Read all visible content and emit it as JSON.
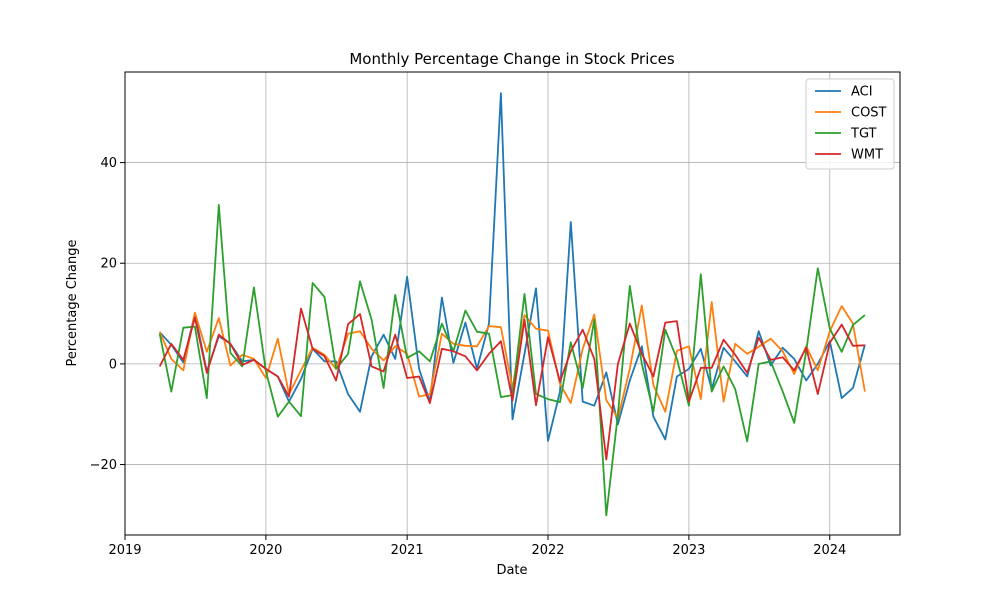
{
  "chart_data": {
    "type": "line",
    "title": "Monthly Percentage Change in Stock Prices",
    "xlabel": "Date",
    "ylabel": "Percentage Change",
    "xlim": [
      "2019-01-01",
      "2024-07-01"
    ],
    "ylim": [
      -34,
      58
    ],
    "xticks": [
      "2019",
      "2020",
      "2021",
      "2022",
      "2023",
      "2024"
    ],
    "yticks": [
      -20,
      0,
      20,
      40
    ],
    "ytick_labels": [
      "−20",
      "0",
      "20",
      "40"
    ],
    "grid": true,
    "legend_position": "top-right",
    "x": [
      "2019-04",
      "2019-05",
      "2019-06",
      "2019-07",
      "2019-08",
      "2019-09",
      "2019-10",
      "2019-11",
      "2019-12",
      "2020-01",
      "2020-02",
      "2020-03",
      "2020-04",
      "2020-05",
      "2020-06",
      "2020-07",
      "2020-08",
      "2020-09",
      "2020-10",
      "2020-11",
      "2020-12",
      "2021-01",
      "2021-02",
      "2021-03",
      "2021-04",
      "2021-05",
      "2021-06",
      "2021-07",
      "2021-08",
      "2021-09",
      "2021-10",
      "2021-11",
      "2021-12",
      "2022-01",
      "2022-02",
      "2022-03",
      "2022-04",
      "2022-05",
      "2022-06",
      "2022-07",
      "2022-08",
      "2022-09",
      "2022-10",
      "2022-11",
      "2022-12",
      "2023-01",
      "2023-02",
      "2023-03",
      "2023-04",
      "2023-05",
      "2023-06",
      "2023-07",
      "2023-08",
      "2023-09",
      "2023-10",
      "2023-11",
      "2023-12",
      "2024-01",
      "2024-02",
      "2024-03",
      "2024-04"
    ],
    "series": [
      {
        "name": "ACI",
        "color": "#1f77b4",
        "values": [
          6.3,
          3.8,
          0.3,
          10.0,
          -1.5,
          5.5,
          4.0,
          0.5,
          0.8,
          -1.0,
          -2.5,
          -7.5,
          -3.0,
          3.0,
          0.5,
          0.5,
          -6.0,
          -9.5,
          1.5,
          5.8,
          1.0,
          17.3,
          -1.0,
          -7.5,
          13.2,
          0.2,
          8.2,
          -1.0,
          8.0,
          53.8,
          -11.0,
          2.0,
          15.0,
          -15.3,
          -5.5,
          28.2,
          -7.5,
          -8.3,
          -1.7,
          -12.0,
          -3.3,
          3.5,
          -10.5,
          -15.0,
          -2.5,
          -1.0,
          3.0,
          -5.0,
          3.2,
          0.5,
          -2.5,
          6.5,
          -0.3,
          3.2,
          1.0,
          -3.3,
          0.0,
          4.5,
          -6.8,
          -4.8,
          3.8
        ]
      },
      {
        "name": "COST",
        "color": "#ff7f0e",
        "values": [
          6.4,
          1.0,
          -1.3,
          10.2,
          2.4,
          9.1,
          -0.3,
          1.8,
          1.0,
          -2.8,
          5.0,
          -6.0,
          -1.3,
          3.2,
          1.8,
          -1.0,
          6.0,
          6.5,
          3.0,
          0.7,
          3.5,
          2.0,
          -6.5,
          -6.0,
          6.0,
          4.0,
          3.6,
          3.5,
          7.5,
          7.3,
          -4.8,
          9.7,
          7.0,
          6.6,
          -4.0,
          -7.8,
          3.0,
          9.8,
          -7.2,
          -10.8,
          -1.0,
          11.6,
          -4.2,
          -9.5,
          2.6,
          3.5,
          -7.0,
          12.3,
          -7.5,
          4.0,
          2.0,
          3.4,
          5.0,
          2.5,
          -2.0,
          3.5,
          -1.3,
          6.5,
          11.5,
          8.0,
          -5.5
        ]
      },
      {
        "name": "TGT",
        "color": "#2ca02c",
        "values": [
          6.0,
          -5.5,
          7.2,
          7.4,
          -6.8,
          31.6,
          2.2,
          -0.5,
          15.2,
          -1.5,
          -10.5,
          -7.5,
          -10.4,
          16.1,
          13.3,
          -1.0,
          2.0,
          16.4,
          8.8,
          -4.8,
          13.7,
          1.2,
          2.5,
          0.5,
          8.0,
          2.5,
          10.6,
          6.4,
          6.0,
          -6.6,
          -6.2,
          13.9,
          -6.0,
          -7.0,
          -7.6,
          4.3,
          -4.8,
          8.8,
          -30.1,
          -10.0,
          15.5,
          0.0,
          -9.5,
          6.8,
          1.0,
          -8.3,
          17.8,
          -5.5,
          -0.5,
          -5.0,
          -15.4,
          0.0,
          0.5,
          -5.5,
          -11.7,
          2.5,
          19.0,
          7.0,
          2.4,
          7.7,
          9.7
        ]
      },
      {
        "name": "WMT",
        "color": "#d62728",
        "values": [
          -0.5,
          4.0,
          0.8,
          9.2,
          -1.8,
          5.8,
          4.0,
          -0.2,
          0.8,
          -1.0,
          -2.5,
          -6.5,
          11.0,
          3.0,
          1.5,
          -3.3,
          7.9,
          9.9,
          -0.5,
          -1.5,
          5.8,
          -2.8,
          -2.5,
          -7.8,
          3.0,
          2.5,
          1.5,
          -1.3,
          2.0,
          4.5,
          -7.3,
          8.8,
          -8.2,
          5.3,
          -3.5,
          2.5,
          6.8,
          1.0,
          -19.0,
          0.0,
          8.0,
          2.0,
          -2.5,
          8.2,
          8.5,
          -7.5,
          -0.8,
          -0.8,
          4.8,
          1.8,
          -1.8,
          5.2,
          0.8,
          1.3,
          -1.3,
          3.2,
          -6.0,
          4.2,
          7.8,
          3.6,
          3.7
        ]
      }
    ]
  }
}
